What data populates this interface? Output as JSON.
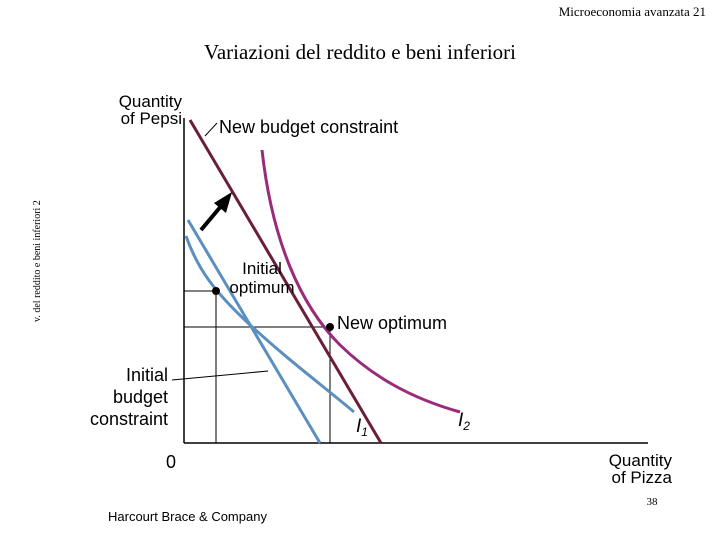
{
  "header": {
    "course": "Microeconomia avanzata",
    "slide_no": "21"
  },
  "title": "Variazioni del reddito e beni inferiori",
  "side_label": "v. del reddito e beni inferiori 2",
  "diagram": {
    "y_axis_label_line1": "Quantity",
    "y_axis_label_line2": "of Pepsi",
    "x_axis_label_line1": "Quantity",
    "x_axis_label_line2": "of Pizza",
    "origin": "0",
    "new_budget_label": "New budget constraint",
    "initial_optimum_line1": "Initial",
    "initial_optimum_line2": "optimum",
    "new_optimum_label": "New optimum",
    "initial_budget_line1": "Initial",
    "initial_budget_line2": "budget",
    "initial_budget_line3": "constraint",
    "i1_main": "I",
    "i1_sub": "1",
    "i2_main": "I",
    "i2_sub": "2",
    "colors": {
      "budget_new": "#6b1e3a",
      "indifference_i2": "#9b2a7a",
      "initial": "#5b8fbf",
      "axes": "#000000"
    }
  },
  "footer": {
    "publisher": "Harcourt Brace & Company",
    "page": "38"
  }
}
